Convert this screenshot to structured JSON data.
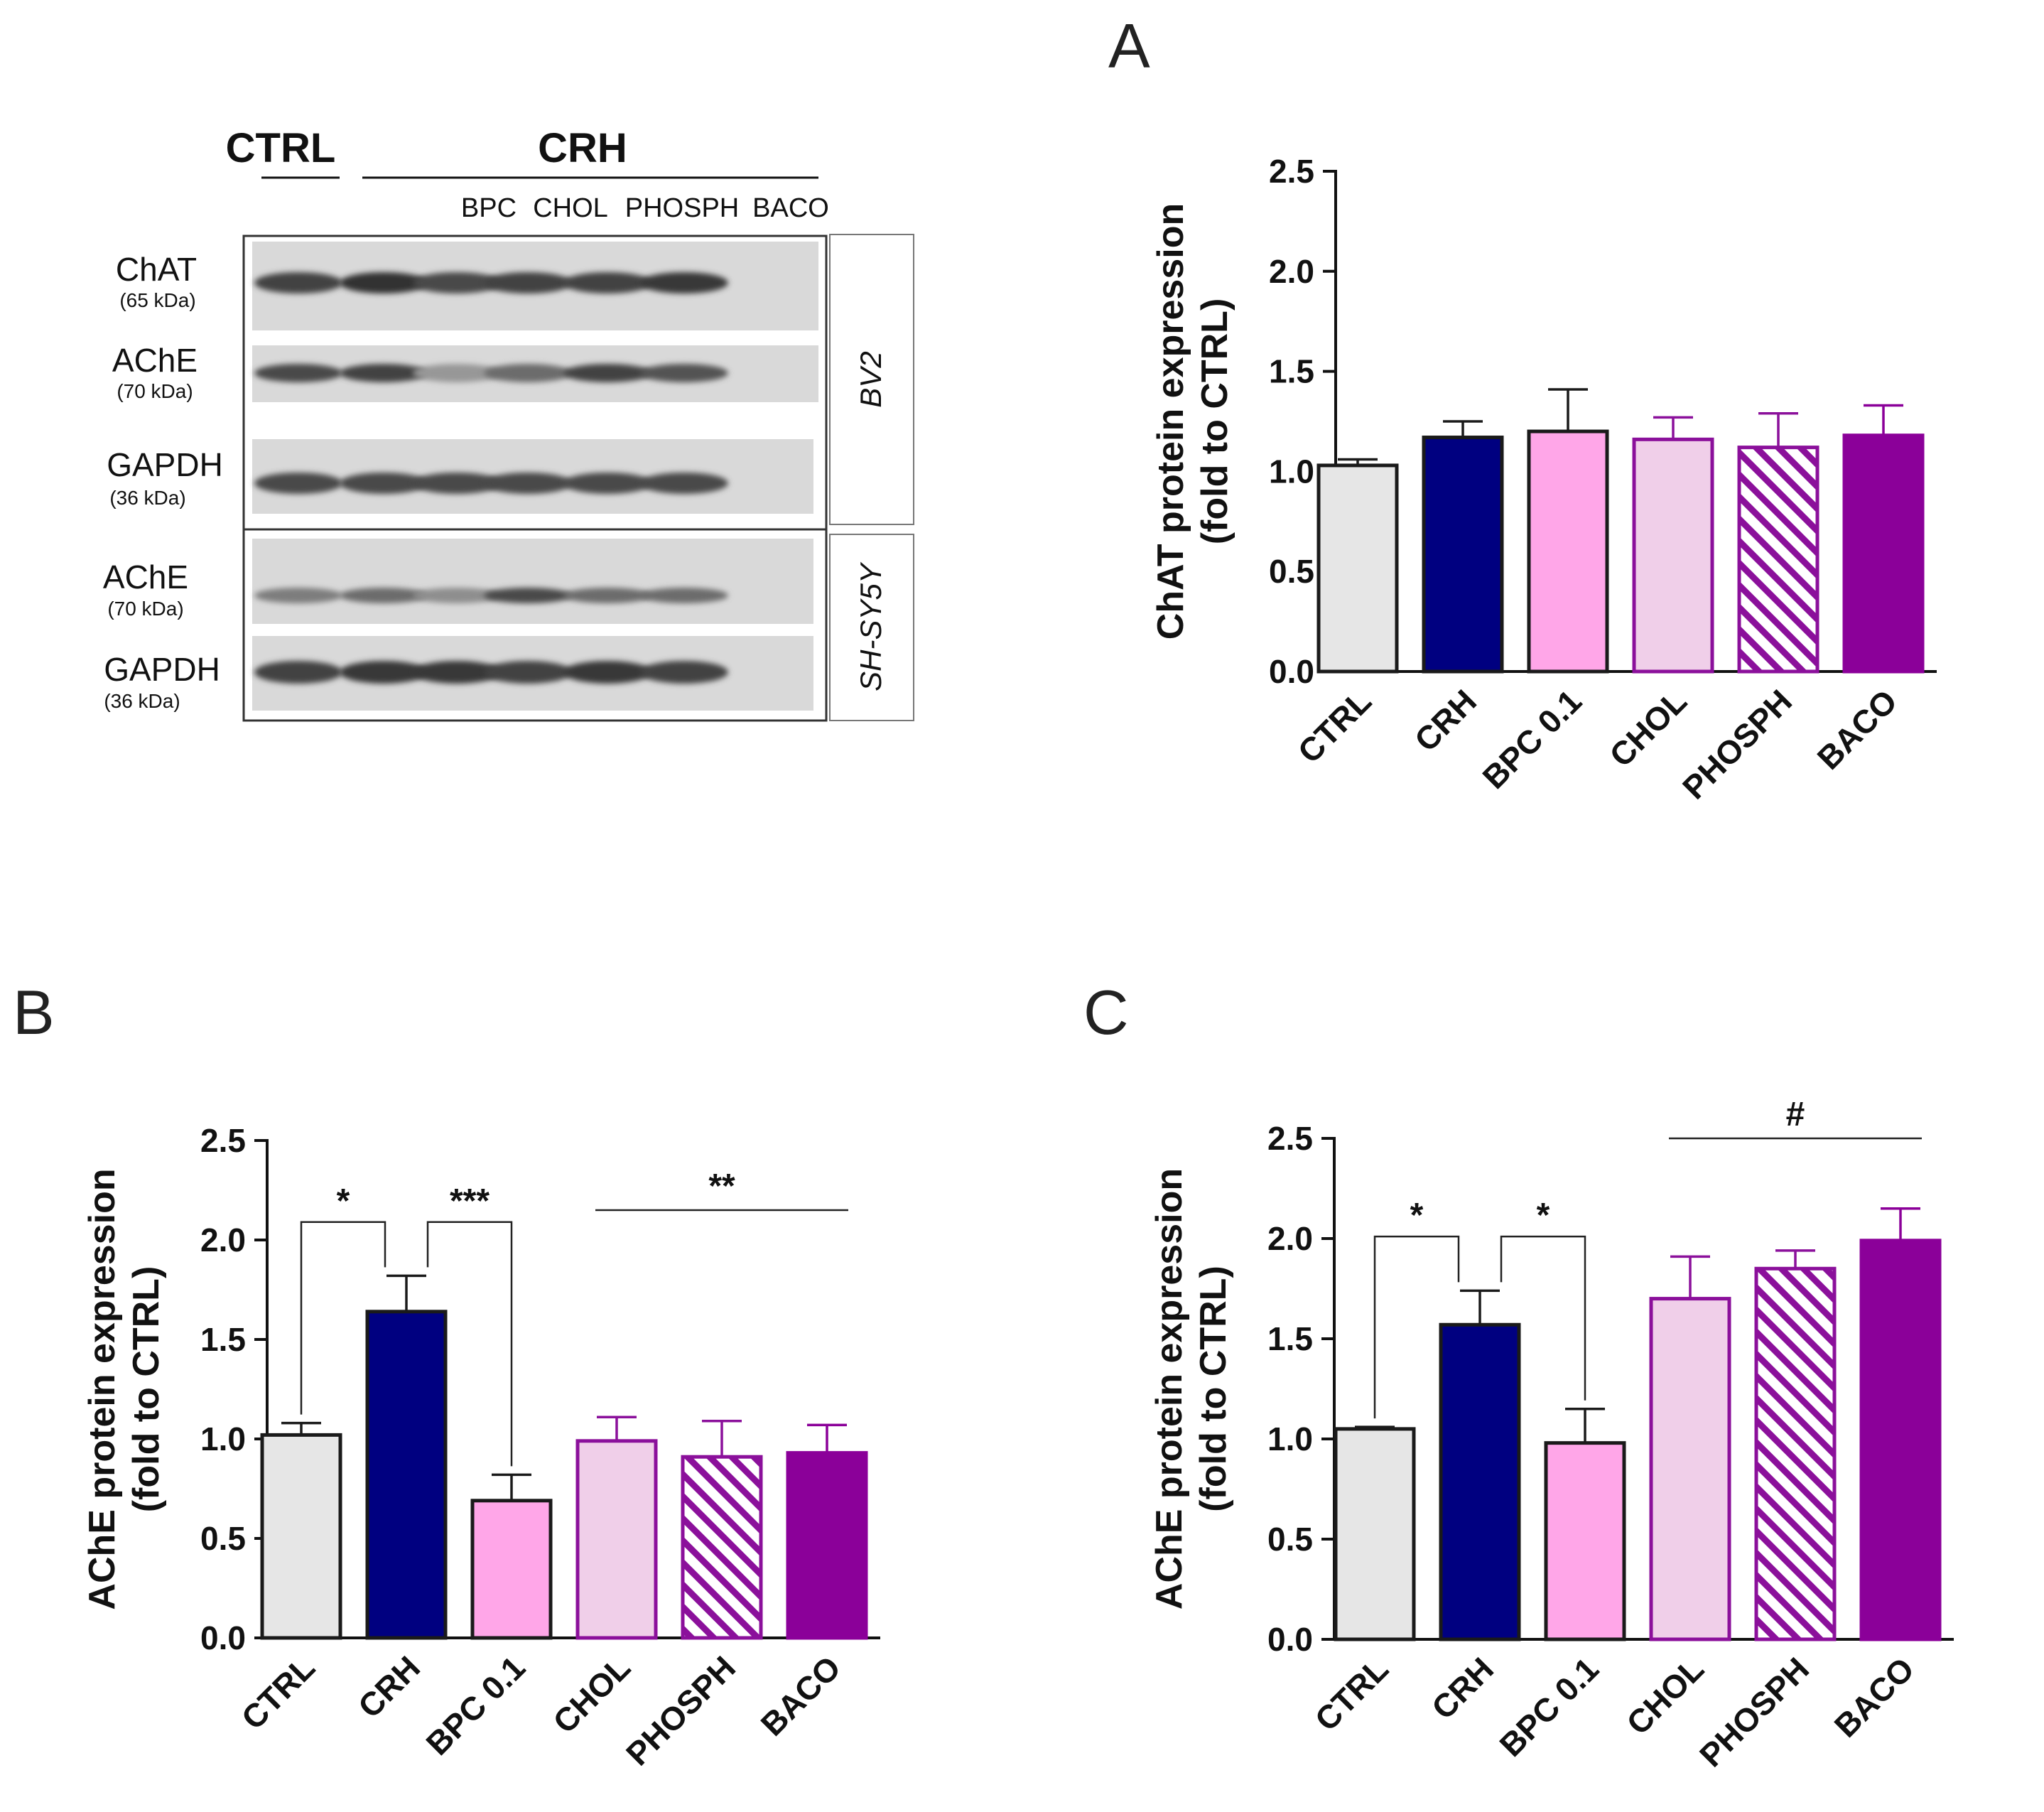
{
  "panel_letters": {
    "a": "A",
    "b": "B",
    "c": "C"
  },
  "blot": {
    "group_ctrl": "CTRL",
    "group_crh": "CRH",
    "lane_labels": [
      "BPC",
      "CHOL",
      "PHOSPH",
      "BACO"
    ],
    "rows": [
      {
        "name": "ChAT",
        "kda": "(65 kDa)",
        "intensity": [
          0.85,
          0.95,
          0.8,
          0.85,
          0.85,
          0.9
        ]
      },
      {
        "name": "AChE",
        "kda": "(70 kDa)",
        "intensity": [
          0.8,
          0.85,
          0.35,
          0.6,
          0.85,
          0.75
        ]
      },
      {
        "name": "GAPDH",
        "kda": "(36 kDa)",
        "intensity": [
          0.8,
          0.8,
          0.8,
          0.8,
          0.8,
          0.8
        ]
      },
      {
        "name": "AChE",
        "kda": "(70 kDa)",
        "intensity": [
          0.5,
          0.6,
          0.4,
          0.8,
          0.6,
          0.6
        ]
      },
      {
        "name": "GAPDH",
        "kda": "(36 kDa)",
        "intensity": [
          0.85,
          0.9,
          0.9,
          0.85,
          0.9,
          0.85
        ]
      }
    ],
    "cell_lines": [
      "BV2",
      "SH-SY5Y"
    ]
  },
  "bar_styles": [
    {
      "fill": "#e6e6e6",
      "stroke": "#1a1a1a",
      "hatch": false
    },
    {
      "fill": "#000080",
      "stroke": "#1a1a1a",
      "hatch": false
    },
    {
      "fill": "#ffa6e8",
      "stroke": "#1a1a1a",
      "hatch": false
    },
    {
      "fill": "#f0cfe9",
      "stroke": "#8b109b",
      "hatch": false
    },
    {
      "fill": "#ffffff",
      "stroke": "#8b109b",
      "hatch": true
    },
    {
      "fill": "#8b0099",
      "stroke": "#8b0099",
      "hatch": false
    }
  ],
  "chart_data": [
    {
      "panel": "A",
      "type": "bar",
      "categories": [
        "CTRL",
        "CRH",
        "BPC 0.1",
        "CHOL",
        "PHOSPH",
        "BACO"
      ],
      "values": [
        1.03,
        1.17,
        1.2,
        1.16,
        1.12,
        1.18
      ],
      "errors": [
        0.03,
        0.08,
        0.21,
        0.11,
        0.17,
        0.15
      ],
      "ylabel_line1": "ChAT protein expression",
      "ylabel_line2": "(fold to CTRL)",
      "ylim": [
        0,
        2.5
      ],
      "yticks": [
        "0.0",
        "0.5",
        "1.0",
        "1.5",
        "2.0",
        "2.5"
      ],
      "annotations": []
    },
    {
      "panel": "B",
      "type": "bar",
      "categories": [
        "CTRL",
        "CRH",
        "BPC 0.1",
        "CHOL",
        "PHOSPH",
        "BACO"
      ],
      "values": [
        1.02,
        1.64,
        0.69,
        0.99,
        0.91,
        0.93
      ],
      "errors": [
        0.06,
        0.18,
        0.13,
        0.12,
        0.18,
        0.14
      ],
      "ylabel_line1": "AChE protein expression",
      "ylabel_line2": "(fold to CTRL)",
      "ylim": [
        0,
        2.5
      ],
      "yticks": [
        "0.0",
        "0.5",
        "1.0",
        "1.5",
        "2.0",
        "2.5"
      ],
      "annotations": [
        {
          "kind": "bracket",
          "from": 0,
          "to": 1,
          "label": "*"
        },
        {
          "kind": "bracket",
          "from": 1,
          "to": 2,
          "label": "***"
        },
        {
          "kind": "line",
          "from": 3,
          "to": 5,
          "label": "**"
        }
      ]
    },
    {
      "panel": "C",
      "type": "bar",
      "categories": [
        "CTRL",
        "CRH",
        "BPC 0.1",
        "CHOL",
        "PHOSPH",
        "BACO"
      ],
      "values": [
        1.05,
        1.57,
        0.98,
        1.7,
        1.85,
        1.99
      ],
      "errors": [
        0.01,
        0.17,
        0.17,
        0.21,
        0.09,
        0.16
      ],
      "ylabel_line1": "AChE protein expression",
      "ylabel_line2": "(fold to CTRL)",
      "ylim": [
        0,
        2.5
      ],
      "yticks": [
        "0.0",
        "0.5",
        "1.0",
        "1.5",
        "2.0",
        "2.5"
      ],
      "annotations": [
        {
          "kind": "bracket",
          "from": 0,
          "to": 1,
          "label": "*"
        },
        {
          "kind": "bracket",
          "from": 1,
          "to": 2,
          "label": "*"
        },
        {
          "kind": "line",
          "from": 3,
          "to": 5,
          "label": "#"
        }
      ]
    }
  ]
}
